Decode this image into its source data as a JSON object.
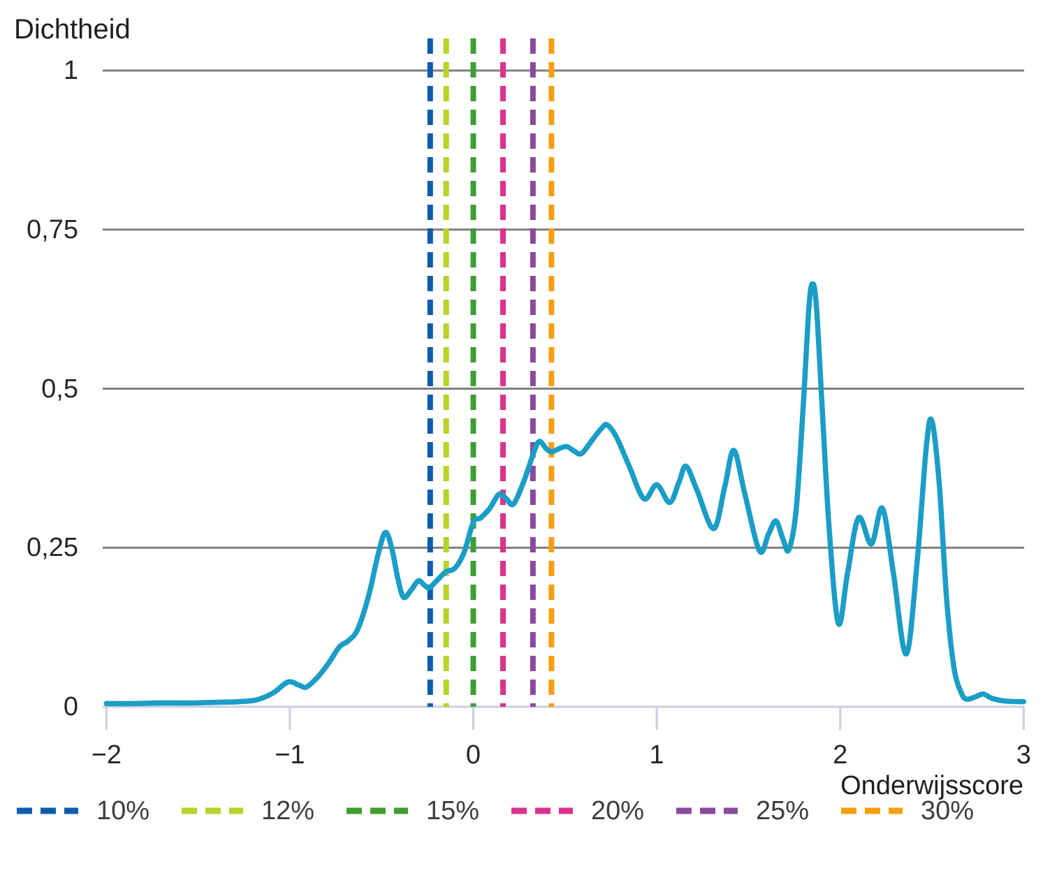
{
  "chart_data": {
    "type": "line",
    "subtype": "kernel-density",
    "title": "",
    "ylabel": "Dichtheid",
    "xlabel": "Onderwijsscore",
    "xlim": [
      -2,
      3
    ],
    "ylim": [
      0,
      1
    ],
    "grid": "horizontal",
    "legend_position": "bottom",
    "x_ticks": {
      "values": [
        -2,
        -1,
        0,
        1,
        2,
        3
      ],
      "labels": [
        "−2",
        "−1",
        "0",
        "1",
        "2",
        "3"
      ]
    },
    "y_ticks": {
      "values": [
        1,
        0.75,
        0.5,
        0.25,
        0
      ],
      "labels": [
        "1",
        "0,75",
        "0,5",
        "0,25",
        "0"
      ]
    },
    "colors": {
      "grid": "#7f7f7f",
      "axis": "#c9cfe1",
      "curve": "#1b9dc6"
    },
    "series": [
      {
        "name": "dichtheid",
        "color": "#1b9dc6",
        "points": [
          [
            -2.0,
            0.005
          ],
          [
            -1.85,
            0.005
          ],
          [
            -1.7,
            0.006
          ],
          [
            -1.55,
            0.006
          ],
          [
            -1.4,
            0.007
          ],
          [
            -1.28,
            0.008
          ],
          [
            -1.18,
            0.011
          ],
          [
            -1.09,
            0.022
          ],
          [
            -1.01,
            0.039
          ],
          [
            -0.95,
            0.034
          ],
          [
            -0.91,
            0.031
          ],
          [
            -0.85,
            0.046
          ],
          [
            -0.79,
            0.068
          ],
          [
            -0.73,
            0.094
          ],
          [
            -0.68,
            0.104
          ],
          [
            -0.63,
            0.122
          ],
          [
            -0.57,
            0.175
          ],
          [
            -0.52,
            0.238
          ],
          [
            -0.48,
            0.274
          ],
          [
            -0.445,
            0.25
          ],
          [
            -0.41,
            0.2
          ],
          [
            -0.38,
            0.172
          ],
          [
            -0.34,
            0.183
          ],
          [
            -0.3,
            0.198
          ],
          [
            -0.27,
            0.192
          ],
          [
            -0.24,
            0.187
          ],
          [
            -0.2,
            0.198
          ],
          [
            -0.15,
            0.212
          ],
          [
            -0.1,
            0.218
          ],
          [
            -0.05,
            0.243
          ],
          [
            0.0,
            0.29
          ],
          [
            0.04,
            0.297
          ],
          [
            0.09,
            0.312
          ],
          [
            0.14,
            0.334
          ],
          [
            0.18,
            0.327
          ],
          [
            0.22,
            0.319
          ],
          [
            0.28,
            0.358
          ],
          [
            0.33,
            0.4
          ],
          [
            0.36,
            0.417
          ],
          [
            0.4,
            0.405
          ],
          [
            0.43,
            0.401
          ],
          [
            0.47,
            0.406
          ],
          [
            0.51,
            0.409
          ],
          [
            0.55,
            0.402
          ],
          [
            0.59,
            0.398
          ],
          [
            0.65,
            0.42
          ],
          [
            0.7,
            0.438
          ],
          [
            0.73,
            0.443
          ],
          [
            0.78,
            0.424
          ],
          [
            0.85,
            0.378
          ],
          [
            0.93,
            0.327
          ],
          [
            1.0,
            0.349
          ],
          [
            1.07,
            0.321
          ],
          [
            1.12,
            0.352
          ],
          [
            1.16,
            0.378
          ],
          [
            1.22,
            0.34
          ],
          [
            1.31,
            0.28
          ],
          [
            1.37,
            0.345
          ],
          [
            1.42,
            0.403
          ],
          [
            1.48,
            0.335
          ],
          [
            1.56,
            0.245
          ],
          [
            1.61,
            0.272
          ],
          [
            1.65,
            0.292
          ],
          [
            1.69,
            0.262
          ],
          [
            1.72,
            0.247
          ],
          [
            1.76,
            0.31
          ],
          [
            1.8,
            0.48
          ],
          [
            1.83,
            0.63
          ],
          [
            1.85,
            0.665
          ],
          [
            1.87,
            0.63
          ],
          [
            1.9,
            0.48
          ],
          [
            1.94,
            0.28
          ],
          [
            1.99,
            0.131
          ],
          [
            2.04,
            0.21
          ],
          [
            2.1,
            0.297
          ],
          [
            2.17,
            0.256
          ],
          [
            2.23,
            0.312
          ],
          [
            2.29,
            0.21
          ],
          [
            2.36,
            0.083
          ],
          [
            2.42,
            0.23
          ],
          [
            2.47,
            0.41
          ],
          [
            2.5,
            0.449
          ],
          [
            2.54,
            0.35
          ],
          [
            2.58,
            0.17
          ],
          [
            2.62,
            0.062
          ],
          [
            2.66,
            0.022
          ],
          [
            2.69,
            0.012
          ],
          [
            2.74,
            0.016
          ],
          [
            2.78,
            0.02
          ],
          [
            2.83,
            0.013
          ],
          [
            2.9,
            0.009
          ],
          [
            3.0,
            0.008
          ]
        ]
      }
    ],
    "thresholds": [
      {
        "label": "10%",
        "x": -0.235,
        "color": "#0f5cad"
      },
      {
        "label": "12%",
        "x": -0.148,
        "color": "#b8d22a"
      },
      {
        "label": "15%",
        "x": 0.0,
        "color": "#3f9e33"
      },
      {
        "label": "20%",
        "x": 0.162,
        "color": "#d9328f"
      },
      {
        "label": "25%",
        "x": 0.325,
        "color": "#8a4a9d"
      },
      {
        "label": "30%",
        "x": 0.426,
        "color": "#f5a011"
      }
    ]
  }
}
